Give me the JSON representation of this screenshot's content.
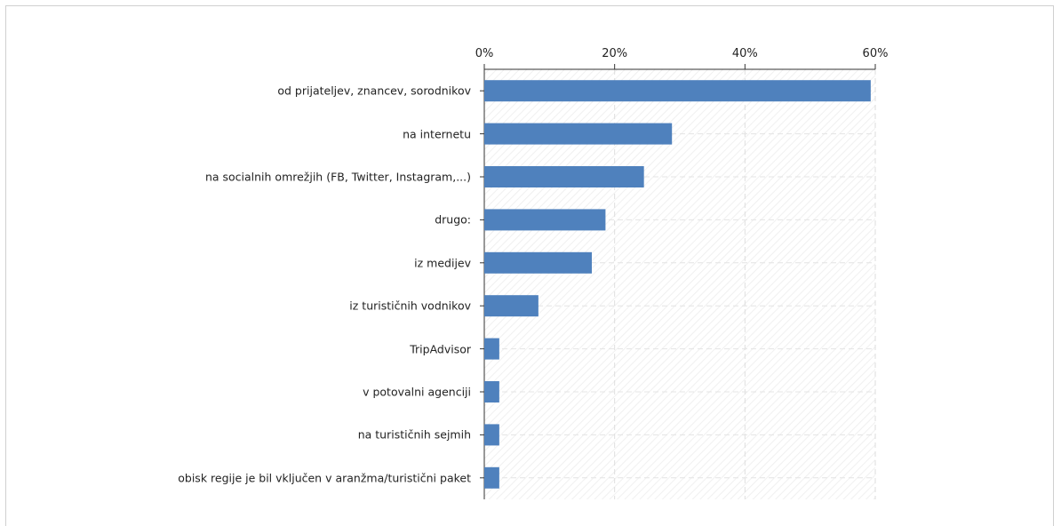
{
  "chart_data": {
    "type": "bar",
    "orientation": "horizontal",
    "categories": [
      "od prijateljev, znancev, sorodnikov",
      "na internetu",
      "na socialnih omrežjih (FB, Twitter, Instagram,...)",
      "drugo:",
      "iz medijev",
      "iz turističnih vodnikov",
      "TripAdvisor",
      "v potovalni agenciji",
      "na turističnih sejmih",
      "obisk  regije je bil vključen v aranžma/turistični paket"
    ],
    "values": [
      59.3,
      28.8,
      24.5,
      18.6,
      16.5,
      8.3,
      2.3,
      2.3,
      2.3,
      2.3
    ],
    "color": "#4f81bd",
    "xlim": [
      0,
      60
    ],
    "xticks": [
      {
        "value": 0,
        "label": "0%"
      },
      {
        "value": 20,
        "label": "20%"
      },
      {
        "value": 40,
        "label": "40%"
      },
      {
        "value": 60,
        "label": "60%"
      }
    ],
    "grid": true
  }
}
